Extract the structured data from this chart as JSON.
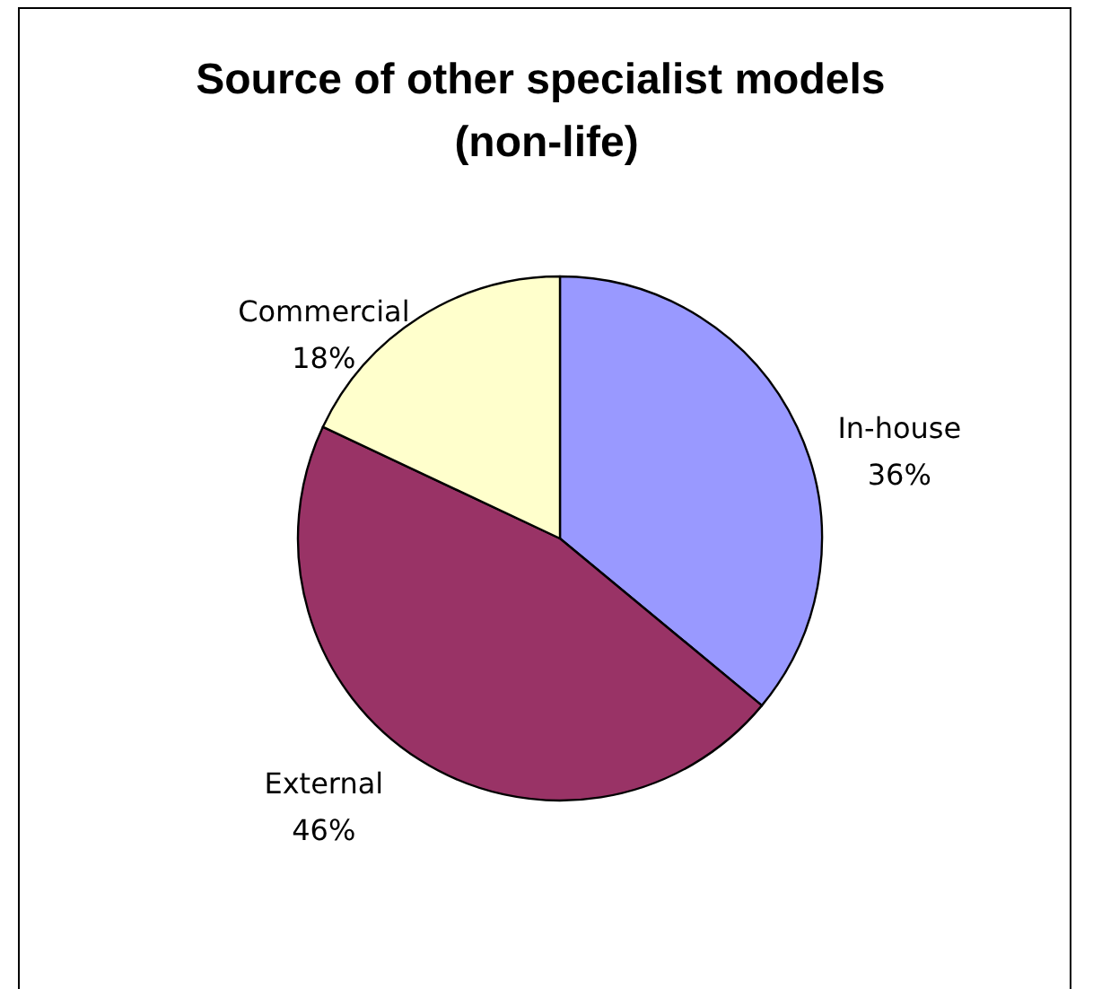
{
  "chart_data": {
    "type": "pie",
    "title": "Source of other specialist models (non-life)",
    "categories": [
      "In-house",
      "External",
      "Commercial"
    ],
    "values": [
      36,
      46,
      18
    ],
    "value_labels": [
      "36%",
      "46%",
      "18%"
    ],
    "colors": [
      "#9999ff",
      "#993366",
      "#ffffcc"
    ],
    "legend": false
  }
}
